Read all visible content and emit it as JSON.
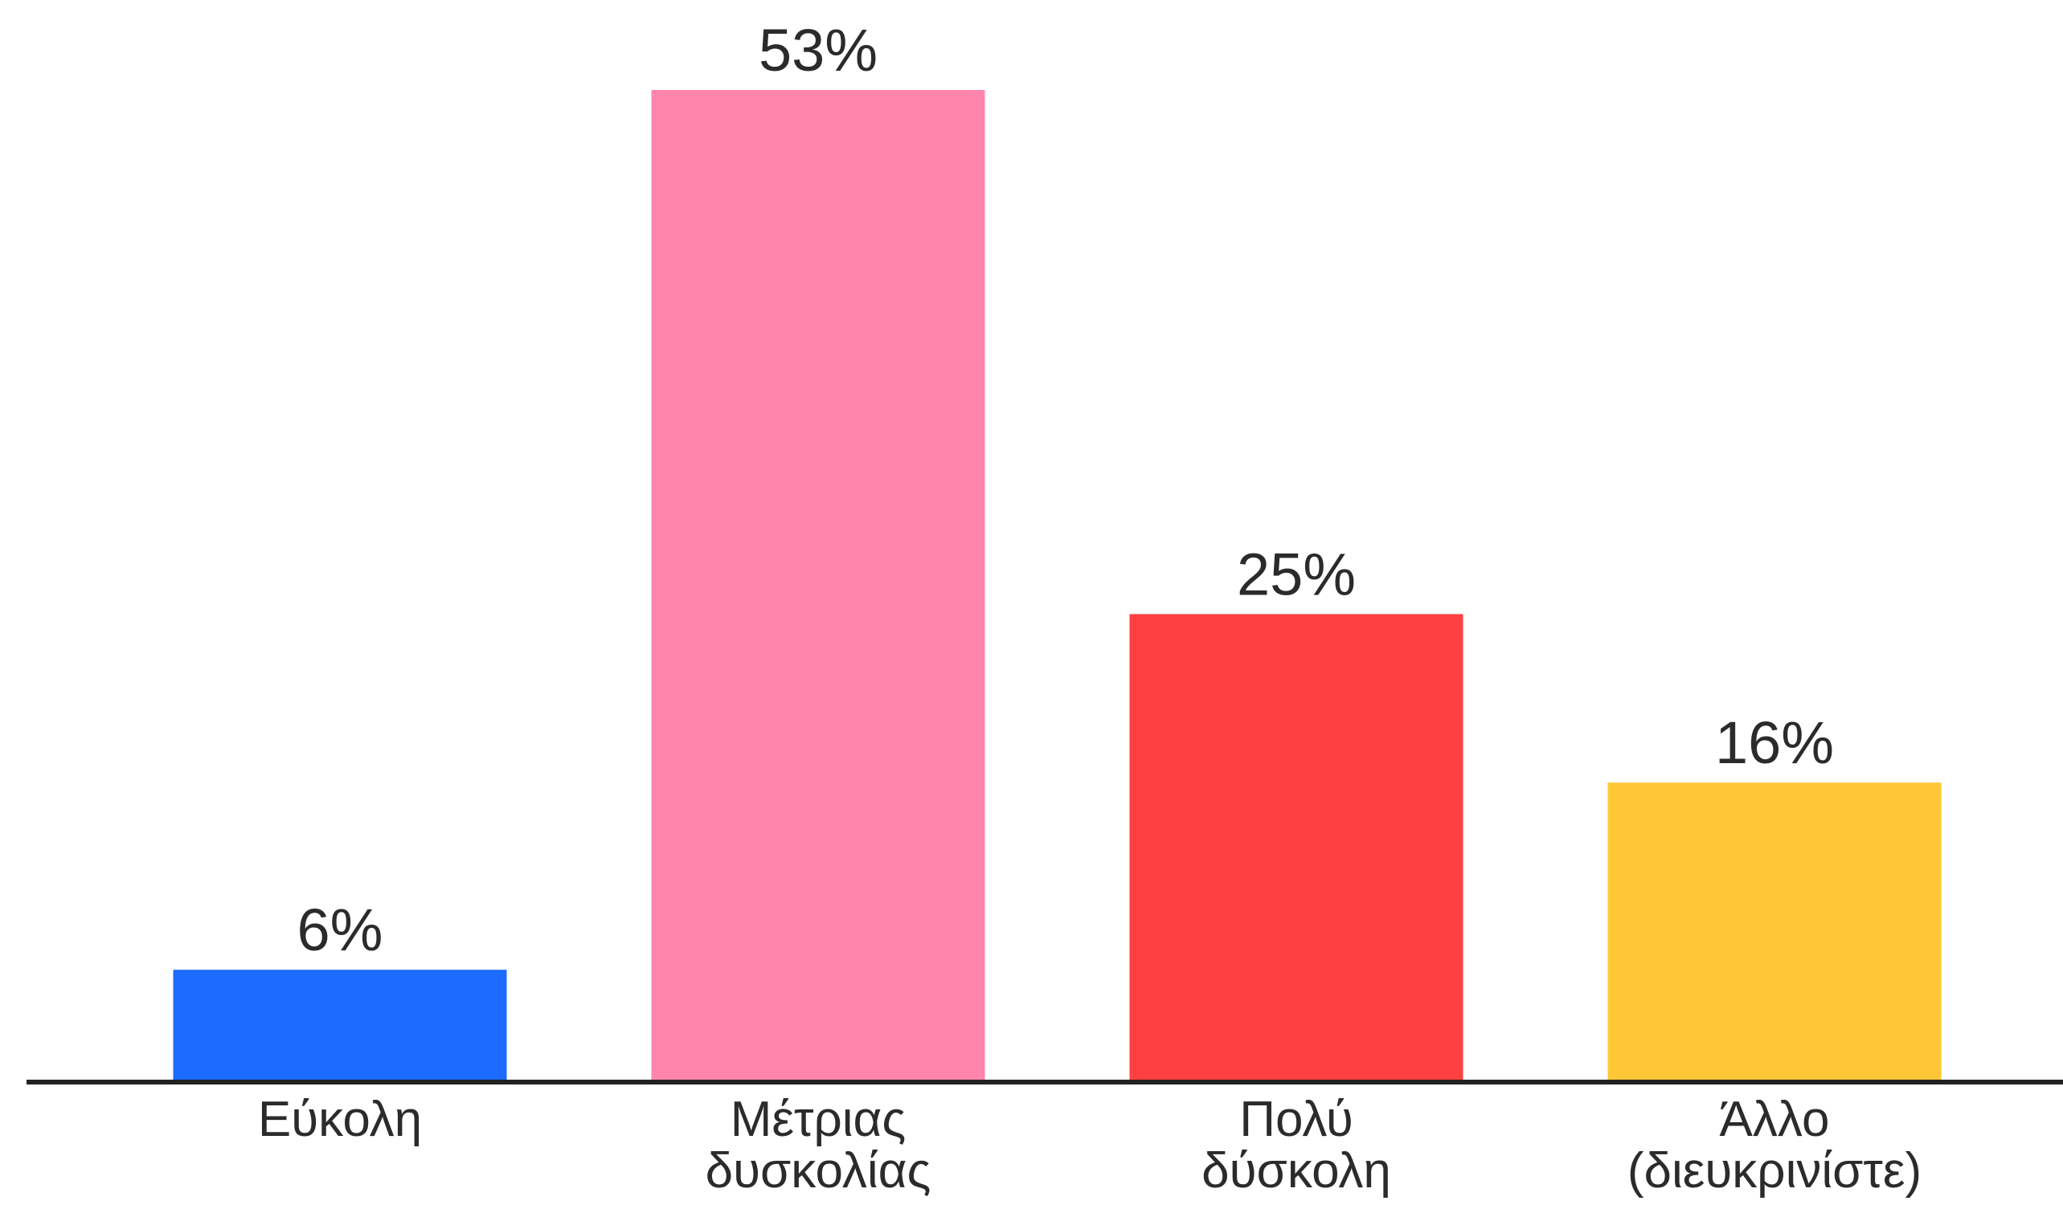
{
  "chart_data": {
    "type": "bar",
    "title": "",
    "xlabel": "",
    "ylabel": "",
    "ylim": [
      0,
      53
    ],
    "grid": false,
    "categories": [
      [
        "Εύκολη"
      ],
      [
        "Μέτριας",
        "δυσκολίας"
      ],
      [
        "Πολύ",
        "δύσκολη"
      ],
      [
        "Άλλο",
        "(διευκρινίστε)"
      ]
    ],
    "values": [
      6,
      53,
      25,
      16
    ],
    "value_labels": [
      "6%",
      "53%",
      "25%",
      "16%"
    ],
    "colors": [
      "#1e6bff",
      "#ff85ac",
      "#ff4040",
      "#ffc738"
    ],
    "axis_color": "#222222"
  }
}
